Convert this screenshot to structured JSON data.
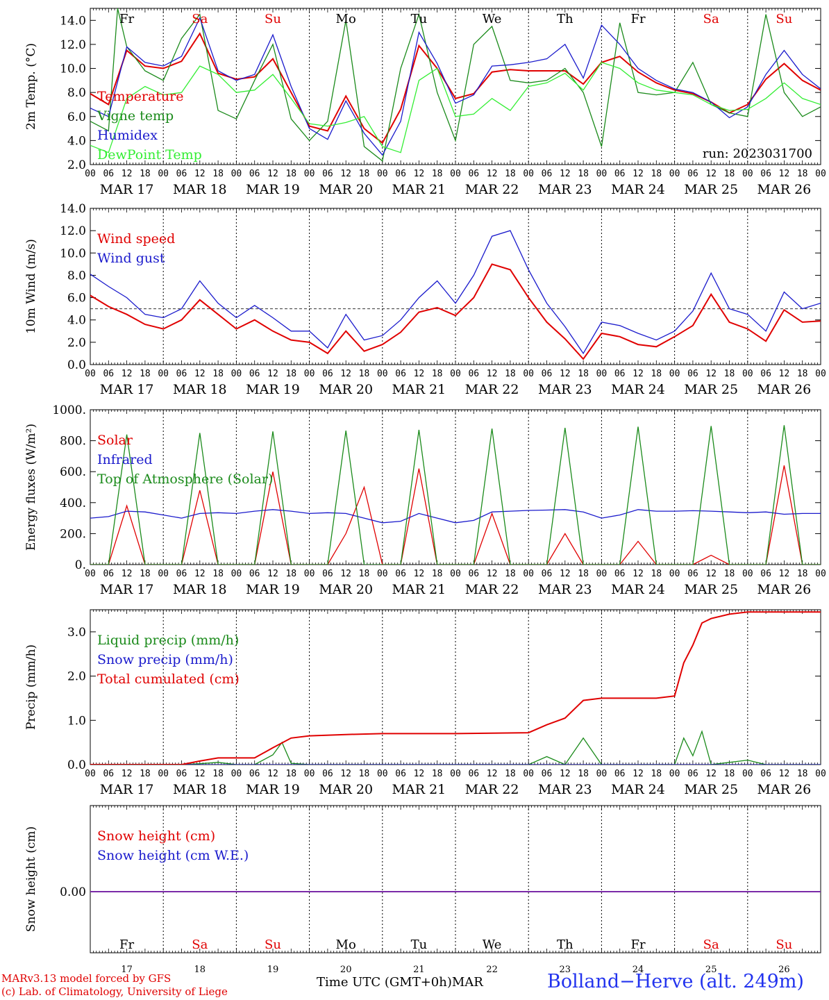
{
  "chart_data": [
    {
      "type": "line",
      "ylabel": "2m Temp. (°C)",
      "ylim": [
        2,
        15
      ],
      "yticks": [
        "2.0",
        "4.0",
        "6.0",
        "8.0",
        "10.0",
        "12.0",
        "14.0"
      ],
      "run_label": "run: 2023031700",
      "series": [
        {
          "name": "Temperature",
          "color": "#e00000",
          "x": [
            0,
            6,
            12,
            18,
            24,
            30,
            36,
            42,
            48,
            54,
            60,
            66,
            72,
            78,
            84,
            90,
            96,
            102,
            108,
            114,
            120,
            126,
            132,
            138,
            144,
            150,
            156,
            162,
            168,
            174,
            180,
            186,
            192,
            198,
            204,
            210,
            216,
            222,
            228,
            234,
            240
          ],
          "values": [
            7.9,
            7.0,
            11.5,
            10.2,
            10.0,
            10.6,
            12.9,
            9.6,
            9.1,
            9.3,
            10.8,
            8.0,
            5.2,
            4.8,
            7.7,
            5.0,
            3.8,
            6.6,
            11.9,
            10.0,
            7.5,
            7.9,
            9.7,
            9.9,
            9.8,
            9.8,
            9.8,
            8.7,
            10.5,
            11.0,
            9.7,
            8.8,
            8.2,
            7.9,
            7.2,
            6.3,
            7.0,
            9.1,
            10.4,
            9.0,
            8.2
          ]
        },
        {
          "name": "Vigne temp",
          "color": "#1a8a1a",
          "x": [
            0,
            6,
            9,
            12,
            18,
            24,
            30,
            36,
            42,
            48,
            54,
            60,
            66,
            72,
            78,
            84,
            90,
            96,
            102,
            108,
            114,
            120,
            126,
            132,
            138,
            144,
            150,
            156,
            162,
            168,
            174,
            180,
            186,
            192,
            198,
            204,
            210,
            216,
            222,
            228,
            234,
            240
          ],
          "values": [
            5.6,
            4.8,
            15.0,
            11.8,
            9.8,
            9.0,
            12.5,
            14.5,
            6.5,
            5.8,
            9.0,
            12.0,
            5.8,
            4.0,
            5.6,
            14.0,
            3.5,
            2.3,
            10.0,
            14.5,
            8.0,
            4.0,
            12.0,
            13.5,
            9.0,
            8.8,
            9.0,
            10.0,
            8.0,
            3.5,
            13.8,
            8.0,
            7.8,
            8.0,
            10.5,
            7.0,
            6.3,
            6.0,
            14.5,
            8.0,
            6.0,
            6.8
          ]
        },
        {
          "name": "Humidex",
          "color": "#1a1acc",
          "x": [
            0,
            6,
            12,
            18,
            24,
            30,
            36,
            42,
            48,
            54,
            60,
            66,
            72,
            78,
            84,
            90,
            96,
            102,
            108,
            114,
            120,
            126,
            132,
            138,
            144,
            150,
            156,
            162,
            168,
            174,
            180,
            186,
            192,
            198,
            204,
            210,
            216,
            222,
            228,
            234,
            240
          ],
          "values": [
            6.7,
            6.0,
            11.8,
            10.5,
            10.2,
            11.0,
            14.2,
            9.8,
            9.0,
            9.5,
            12.8,
            8.5,
            5.0,
            4.1,
            7.3,
            4.6,
            2.8,
            5.6,
            13.0,
            10.4,
            7.1,
            7.8,
            10.2,
            10.3,
            10.5,
            10.8,
            12.0,
            9.2,
            13.6,
            12.0,
            10.0,
            9.0,
            8.3,
            8.0,
            7.2,
            5.9,
            6.8,
            9.5,
            11.5,
            9.5,
            8.3
          ]
        },
        {
          "name": "DewPoint Temp",
          "color": "#33ee33",
          "x": [
            0,
            6,
            12,
            18,
            24,
            30,
            36,
            42,
            48,
            54,
            60,
            66,
            72,
            78,
            84,
            90,
            96,
            102,
            108,
            114,
            120,
            126,
            132,
            138,
            144,
            150,
            156,
            162,
            168,
            174,
            180,
            186,
            192,
            198,
            204,
            210,
            216,
            222,
            228,
            234,
            240
          ],
          "values": [
            3.6,
            3.0,
            7.5,
            8.5,
            7.8,
            8.0,
            10.2,
            9.5,
            8.0,
            8.2,
            9.5,
            7.5,
            5.4,
            5.2,
            5.5,
            6.0,
            3.5,
            3.0,
            9.0,
            10.0,
            6.0,
            6.2,
            7.5,
            6.5,
            8.5,
            8.8,
            9.6,
            8.2,
            10.5,
            10.0,
            8.8,
            8.2,
            8.0,
            7.8,
            7.0,
            6.5,
            6.6,
            7.5,
            8.8,
            7.5,
            7.0
          ]
        }
      ]
    },
    {
      "type": "line",
      "ylabel": "10m Wind (m/s)",
      "ylim": [
        0,
        14
      ],
      "yticks": [
        "0.0",
        "2.0",
        "4.0",
        "6.0",
        "8.0",
        "10.0",
        "12.0",
        "14.0"
      ],
      "reference_line": 5,
      "series": [
        {
          "name": "Wind speed",
          "color": "#e00000",
          "x": [
            0,
            6,
            12,
            18,
            24,
            30,
            36,
            42,
            48,
            54,
            60,
            66,
            72,
            78,
            84,
            90,
            96,
            102,
            108,
            114,
            120,
            126,
            132,
            138,
            144,
            150,
            156,
            162,
            168,
            174,
            180,
            186,
            192,
            198,
            204,
            210,
            216,
            222,
            228,
            234,
            240
          ],
          "values": [
            6.2,
            5.2,
            4.5,
            3.6,
            3.2,
            4.0,
            5.8,
            4.5,
            3.2,
            4.0,
            3.0,
            2.2,
            2.0,
            1.0,
            3.0,
            1.2,
            1.8,
            2.9,
            4.7,
            5.1,
            4.4,
            6.0,
            9.0,
            8.5,
            6.0,
            3.8,
            2.3,
            0.5,
            2.8,
            2.5,
            1.8,
            1.6,
            2.5,
            3.5,
            6.3,
            3.8,
            3.2,
            2.1,
            4.9,
            3.8,
            3.9
          ]
        },
        {
          "name": "Wind gust",
          "color": "#1a1acc",
          "x": [
            0,
            6,
            12,
            18,
            24,
            30,
            36,
            42,
            48,
            54,
            60,
            66,
            72,
            78,
            84,
            90,
            96,
            102,
            108,
            114,
            120,
            126,
            132,
            138,
            144,
            150,
            156,
            162,
            168,
            174,
            180,
            186,
            192,
            198,
            204,
            210,
            216,
            222,
            228,
            234,
            240
          ],
          "values": [
            8.1,
            7.0,
            6.0,
            4.5,
            4.2,
            5.0,
            7.5,
            5.5,
            4.2,
            5.3,
            4.2,
            3.0,
            3.0,
            1.5,
            4.5,
            2.2,
            2.6,
            4.0,
            6.0,
            7.5,
            5.5,
            8.0,
            11.5,
            12.0,
            8.5,
            5.5,
            3.4,
            1.0,
            3.8,
            3.5,
            2.8,
            2.2,
            3.0,
            4.8,
            8.2,
            5.0,
            4.5,
            3.0,
            6.5,
            5.0,
            5.5
          ]
        }
      ]
    },
    {
      "type": "line",
      "ylabel": "Energy fluxes (W/m²)",
      "ylim": [
        0,
        1000
      ],
      "yticks": [
        "0.",
        "200.",
        "400.",
        "600.",
        "800.",
        "1000."
      ],
      "series": [
        {
          "name": "Solar",
          "color": "#e00000",
          "x": [
            0,
            6,
            12,
            18,
            24,
            30,
            36,
            42,
            48,
            54,
            60,
            66,
            72,
            78,
            84,
            90,
            96,
            102,
            108,
            114,
            120,
            126,
            132,
            138,
            144,
            150,
            156,
            162,
            168,
            174,
            180,
            186,
            192,
            198,
            204,
            210,
            216,
            222,
            228,
            234,
            240
          ],
          "values": [
            0,
            0,
            380,
            0,
            0,
            0,
            480,
            0,
            0,
            0,
            600,
            0,
            0,
            0,
            200,
            500,
            0,
            0,
            620,
            0,
            0,
            0,
            330,
            0,
            0,
            0,
            200,
            0,
            0,
            0,
            150,
            0,
            0,
            0,
            60,
            0,
            0,
            0,
            640,
            0,
            0
          ]
        },
        {
          "name": "Infrared",
          "color": "#1a1acc",
          "x": [
            0,
            6,
            12,
            18,
            24,
            30,
            36,
            42,
            48,
            54,
            60,
            66,
            72,
            78,
            84,
            90,
            96,
            102,
            108,
            114,
            120,
            126,
            132,
            138,
            144,
            150,
            156,
            162,
            168,
            174,
            180,
            186,
            192,
            198,
            204,
            210,
            216,
            222,
            228,
            234,
            240
          ],
          "values": [
            300,
            310,
            345,
            340,
            320,
            300,
            330,
            335,
            330,
            345,
            355,
            345,
            330,
            335,
            330,
            300,
            270,
            280,
            330,
            300,
            270,
            285,
            340,
            345,
            350,
            352,
            355,
            340,
            300,
            320,
            355,
            345,
            345,
            348,
            345,
            340,
            335,
            340,
            325,
            330,
            330
          ]
        },
        {
          "name": "Top of Atmosphere (Solar)",
          "color": "#1a8a1a",
          "x": [
            0,
            6,
            12,
            18,
            24,
            30,
            36,
            42,
            48,
            54,
            60,
            66,
            72,
            78,
            84,
            90,
            96,
            102,
            108,
            114,
            120,
            126,
            132,
            138,
            144,
            150,
            156,
            162,
            168,
            174,
            180,
            186,
            192,
            198,
            204,
            210,
            216,
            222,
            228,
            234,
            240
          ],
          "values": [
            0,
            0,
            840,
            0,
            0,
            0,
            850,
            0,
            0,
            0,
            860,
            0,
            0,
            0,
            865,
            0,
            0,
            0,
            870,
            0,
            0,
            0,
            878,
            0,
            0,
            0,
            883,
            0,
            0,
            0,
            890,
            0,
            0,
            0,
            895,
            0,
            0,
            0,
            900,
            0,
            0
          ]
        }
      ]
    },
    {
      "type": "line",
      "ylabel": "Precip (mm/h)",
      "ylim": [
        0,
        3.5
      ],
      "yticks": [
        "0.0",
        "1.0",
        "2.0",
        "3.0"
      ],
      "series": [
        {
          "name": "Liquid precip (mm/h)",
          "color": "#1a8a1a",
          "x": [
            0,
            30,
            36,
            42,
            48,
            54,
            60,
            63,
            66,
            72,
            96,
            120,
            144,
            150,
            156,
            162,
            168,
            186,
            192,
            195,
            198,
            201,
            204,
            210,
            216,
            222,
            240
          ],
          "values": [
            0,
            0,
            0.02,
            0.05,
            0,
            0,
            0.22,
            0.5,
            0.03,
            0,
            0,
            0,
            0,
            0.18,
            0,
            0.6,
            0,
            0,
            0,
            0.6,
            0.2,
            0.75,
            0,
            0.05,
            0.1,
            0,
            0
          ]
        },
        {
          "name": "Snow precip (mm/h)",
          "color": "#1a1acc",
          "x": [
            0,
            240
          ],
          "values": [
            0,
            0
          ]
        },
        {
          "name": "Total cumulated (cm)",
          "color": "#e00000",
          "x": [
            0,
            30,
            36,
            42,
            48,
            54,
            60,
            66,
            72,
            84,
            96,
            120,
            144,
            150,
            156,
            162,
            168,
            186,
            192,
            195,
            198,
            201,
            204,
            210,
            216,
            222,
            240
          ],
          "values": [
            0,
            0,
            0.08,
            0.15,
            0.15,
            0.15,
            0.38,
            0.6,
            0.65,
            0.68,
            0.7,
            0.7,
            0.72,
            0.9,
            1.05,
            1.45,
            1.5,
            1.5,
            1.55,
            2.3,
            2.7,
            3.2,
            3.3,
            3.4,
            3.45,
            3.45,
            3.45
          ]
        }
      ]
    },
    {
      "type": "line",
      "ylabel": "Snow height (cm)",
      "yticks": [
        "0.00"
      ],
      "series": [
        {
          "name": "Snow height (cm)",
          "color": "#e00000",
          "x": [
            0,
            240
          ],
          "values": [
            0,
            0
          ]
        },
        {
          "name": "Snow height (cm W.E.)",
          "color": "#1a1acc",
          "x": [
            0,
            240
          ],
          "values": [
            0,
            0
          ]
        }
      ]
    }
  ],
  "days": {
    "abbrev": [
      "Fr",
      "Sa",
      "Su",
      "Mo",
      "Tu",
      "We",
      "Th",
      "Fr",
      "Sa",
      "Su"
    ],
    "colors": [
      "#000000",
      "#e00000",
      "#e00000",
      "#000000",
      "#000000",
      "#000000",
      "#000000",
      "#000000",
      "#e00000",
      "#e00000"
    ],
    "dates": [
      "MAR 17",
      "MAR 18",
      "MAR 19",
      "MAR 20",
      "MAR 21",
      "MAR 22",
      "MAR 23",
      "MAR 24",
      "MAR 25",
      "MAR 26"
    ],
    "numbers": [
      "17",
      "18",
      "19",
      "20",
      "21",
      "22",
      "23",
      "24",
      "25",
      "26"
    ]
  },
  "hour_ticks": [
    "00",
    "06",
    "12",
    "18"
  ],
  "footer": {
    "model": "MARv3.13 model forced by GFS",
    "lab": "(c) Lab. of Climatology, University of Liege",
    "time_label": "Time UTC (GMT+0h)",
    "month": "MAR",
    "station": "Bolland−Herve (alt. 249m)"
  }
}
